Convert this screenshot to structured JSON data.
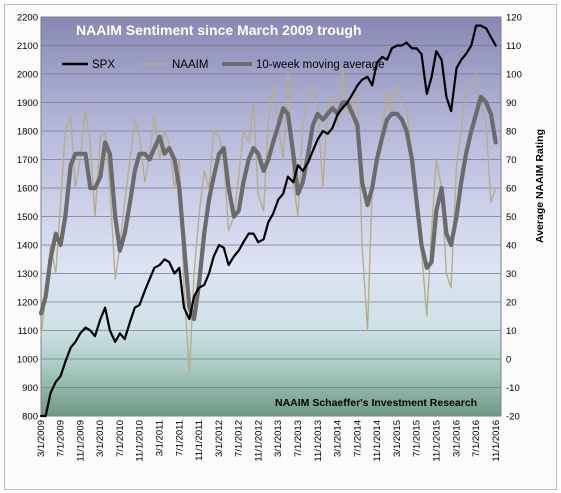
{
  "chart_data": {
    "type": "line",
    "title": "NAAIM Sentiment since March 2009 trough",
    "source": "NAAIM   Schaeffer's Investment Research",
    "ylabel_right": "Average NAAIM Rating",
    "ylim_left": [
      800,
      2200
    ],
    "ylim_right": [
      -20,
      120
    ],
    "yticks_left": [
      "800",
      "900",
      "1000",
      "1100",
      "1200",
      "1300",
      "1400",
      "1500",
      "1600",
      "1700",
      "1800",
      "1900",
      "2000",
      "2100",
      "2200"
    ],
    "yticks_right": [
      "-20",
      "-10",
      "0",
      "10",
      "20",
      "30",
      "40",
      "50",
      "60",
      "70",
      "80",
      "90",
      "100",
      "110",
      "120"
    ],
    "xticks": [
      "3/1/2009",
      "7/1/2009",
      "11/1/2009",
      "3/1/2010",
      "7/1/2010",
      "11/1/2010",
      "3/1/2011",
      "7/1/2011",
      "11/1/2011",
      "3/1/2012",
      "7/1/2012",
      "11/1/2012",
      "3/1/2013",
      "7/1/2013",
      "11/1/2013",
      "3/1/2014",
      "7/1/2014",
      "11/1/2014",
      "3/1/2015",
      "7/1/2015",
      "11/1/2015",
      "3/1/2016",
      "7/1/2016",
      "11/1/2016"
    ],
    "legend": [
      "SPX",
      "NAAIM",
      "10-week moving average"
    ],
    "series": [
      {
        "name": "SPX",
        "axis": "left",
        "color": "#000000",
        "x": [
          2009.17,
          2009.25,
          2009.33,
          2009.42,
          2009.5,
          2009.58,
          2009.67,
          2009.75,
          2009.83,
          2009.92,
          2010.0,
          2010.08,
          2010.17,
          2010.25,
          2010.33,
          2010.42,
          2010.5,
          2010.58,
          2010.67,
          2010.75,
          2010.83,
          2010.92,
          2011.0,
          2011.08,
          2011.17,
          2011.25,
          2011.33,
          2011.42,
          2011.5,
          2011.58,
          2011.67,
          2011.75,
          2011.83,
          2011.92,
          2012.0,
          2012.08,
          2012.17,
          2012.25,
          2012.33,
          2012.42,
          2012.5,
          2012.58,
          2012.67,
          2012.75,
          2012.83,
          2012.92,
          2013.0,
          2013.08,
          2013.17,
          2013.25,
          2013.33,
          2013.42,
          2013.5,
          2013.58,
          2013.67,
          2013.75,
          2013.83,
          2013.92,
          2014.0,
          2014.08,
          2014.17,
          2014.25,
          2014.33,
          2014.42,
          2014.5,
          2014.58,
          2014.67,
          2014.75,
          2014.83,
          2014.92,
          2015.0,
          2015.08,
          2015.17,
          2015.25,
          2015.33,
          2015.42,
          2015.5,
          2015.58,
          2015.67,
          2015.75,
          2015.83,
          2015.92,
          2016.0,
          2016.08,
          2016.17,
          2016.25,
          2016.33,
          2016.42,
          2016.5,
          2016.58,
          2016.67,
          2016.75,
          2016.83
        ],
        "values": [
          700,
          800,
          880,
          920,
          940,
          990,
          1040,
          1060,
          1090,
          1110,
          1100,
          1080,
          1140,
          1180,
          1100,
          1060,
          1090,
          1070,
          1130,
          1180,
          1190,
          1240,
          1280,
          1320,
          1330,
          1350,
          1340,
          1300,
          1320,
          1180,
          1140,
          1220,
          1250,
          1260,
          1300,
          1360,
          1400,
          1390,
          1330,
          1360,
          1380,
          1410,
          1440,
          1440,
          1410,
          1420,
          1480,
          1510,
          1560,
          1580,
          1640,
          1620,
          1680,
          1660,
          1690,
          1730,
          1770,
          1800,
          1790,
          1810,
          1860,
          1880,
          1900,
          1930,
          1960,
          1980,
          1990,
          1960,
          2040,
          2060,
          2050,
          2090,
          2100,
          2100,
          2110,
          2090,
          2090,
          2070,
          1930,
          1990,
          2080,
          2050,
          1920,
          1870,
          2020,
          2050,
          2070,
          2100,
          2170,
          2170,
          2160,
          2130,
          2100
        ]
      },
      {
        "name": "NAAIM",
        "axis": "right",
        "color": "#b6ad8c",
        "x": [
          2009.17,
          2009.25,
          2009.33,
          2009.42,
          2009.5,
          2009.58,
          2009.67,
          2009.75,
          2009.83,
          2009.92,
          2010.0,
          2010.08,
          2010.17,
          2010.25,
          2010.33,
          2010.42,
          2010.5,
          2010.58,
          2010.67,
          2010.75,
          2010.83,
          2010.92,
          2011.0,
          2011.08,
          2011.17,
          2011.25,
          2011.33,
          2011.42,
          2011.5,
          2011.58,
          2011.67,
          2011.75,
          2011.83,
          2011.92,
          2012.0,
          2012.08,
          2012.17,
          2012.25,
          2012.33,
          2012.42,
          2012.5,
          2012.58,
          2012.67,
          2012.75,
          2012.83,
          2012.92,
          2013.0,
          2013.08,
          2013.17,
          2013.25,
          2013.33,
          2013.42,
          2013.5,
          2013.58,
          2013.67,
          2013.75,
          2013.83,
          2013.92,
          2014.0,
          2014.08,
          2014.17,
          2014.25,
          2014.33,
          2014.42,
          2014.5,
          2014.58,
          2014.67,
          2014.75,
          2014.83,
          2014.92,
          2015.0,
          2015.08,
          2015.17,
          2015.25,
          2015.33,
          2015.42,
          2015.5,
          2015.58,
          2015.67,
          2015.75,
          2015.83,
          2015.92,
          2016.0,
          2016.08,
          2016.17,
          2016.25,
          2016.33,
          2016.42,
          2016.5,
          2016.58,
          2016.67,
          2016.75,
          2016.83
        ],
        "values": [
          8,
          22,
          40,
          30,
          55,
          80,
          85,
          60,
          70,
          88,
          75,
          50,
          78,
          80,
          60,
          28,
          40,
          55,
          70,
          84,
          78,
          62,
          72,
          85,
          70,
          80,
          76,
          60,
          70,
          25,
          -5,
          30,
          50,
          66,
          60,
          80,
          78,
          70,
          45,
          50,
          64,
          80,
          76,
          90,
          58,
          52,
          84,
          95,
          82,
          70,
          100,
          62,
          50,
          82,
          92,
          96,
          88,
          60,
          90,
          92,
          82,
          102,
          86,
          90,
          94,
          40,
          10,
          60,
          72,
          80,
          94,
          86,
          96,
          90,
          88,
          70,
          52,
          38,
          15,
          45,
          70,
          60,
          30,
          25,
          68,
          80,
          95,
          98,
          100,
          90,
          82,
          55,
          60
        ]
      },
      {
        "name": "10-week moving average",
        "axis": "right",
        "color": "#6b6b6b",
        "x": [
          2009.17,
          2009.25,
          2009.33,
          2009.42,
          2009.5,
          2009.58,
          2009.67,
          2009.75,
          2009.83,
          2009.92,
          2010.0,
          2010.08,
          2010.17,
          2010.25,
          2010.33,
          2010.42,
          2010.5,
          2010.58,
          2010.67,
          2010.75,
          2010.83,
          2010.92,
          2011.0,
          2011.08,
          2011.17,
          2011.25,
          2011.33,
          2011.42,
          2011.5,
          2011.58,
          2011.67,
          2011.75,
          2011.83,
          2011.92,
          2012.0,
          2012.08,
          2012.17,
          2012.25,
          2012.33,
          2012.42,
          2012.5,
          2012.58,
          2012.67,
          2012.75,
          2012.83,
          2012.92,
          2013.0,
          2013.08,
          2013.17,
          2013.25,
          2013.33,
          2013.42,
          2013.5,
          2013.58,
          2013.67,
          2013.75,
          2013.83,
          2013.92,
          2014.0,
          2014.08,
          2014.17,
          2014.25,
          2014.33,
          2014.42,
          2014.5,
          2014.58,
          2014.67,
          2014.75,
          2014.83,
          2014.92,
          2015.0,
          2015.08,
          2015.17,
          2015.25,
          2015.33,
          2015.42,
          2015.5,
          2015.58,
          2015.67,
          2015.75,
          2015.83,
          2015.92,
          2016.0,
          2016.08,
          2016.17,
          2016.25,
          2016.33,
          2016.42,
          2016.5,
          2016.58,
          2016.67,
          2016.75,
          2016.83
        ],
        "values": [
          16,
          22,
          35,
          44,
          40,
          50,
          68,
          72,
          72,
          72,
          60,
          60,
          64,
          76,
          72,
          50,
          38,
          44,
          55,
          66,
          72,
          72,
          70,
          74,
          78,
          72,
          74,
          70,
          60,
          40,
          18,
          14,
          26,
          44,
          56,
          64,
          72,
          74,
          60,
          50,
          52,
          62,
          70,
          74,
          72,
          66,
          70,
          76,
          82,
          88,
          86,
          72,
          58,
          62,
          72,
          82,
          86,
          84,
          86,
          88,
          86,
          90,
          90,
          86,
          82,
          62,
          54,
          60,
          70,
          78,
          84,
          86,
          86,
          84,
          80,
          70,
          55,
          40,
          32,
          34,
          52,
          60,
          44,
          40,
          50,
          62,
          72,
          80,
          86,
          92,
          90,
          86,
          76
        ]
      }
    ]
  }
}
